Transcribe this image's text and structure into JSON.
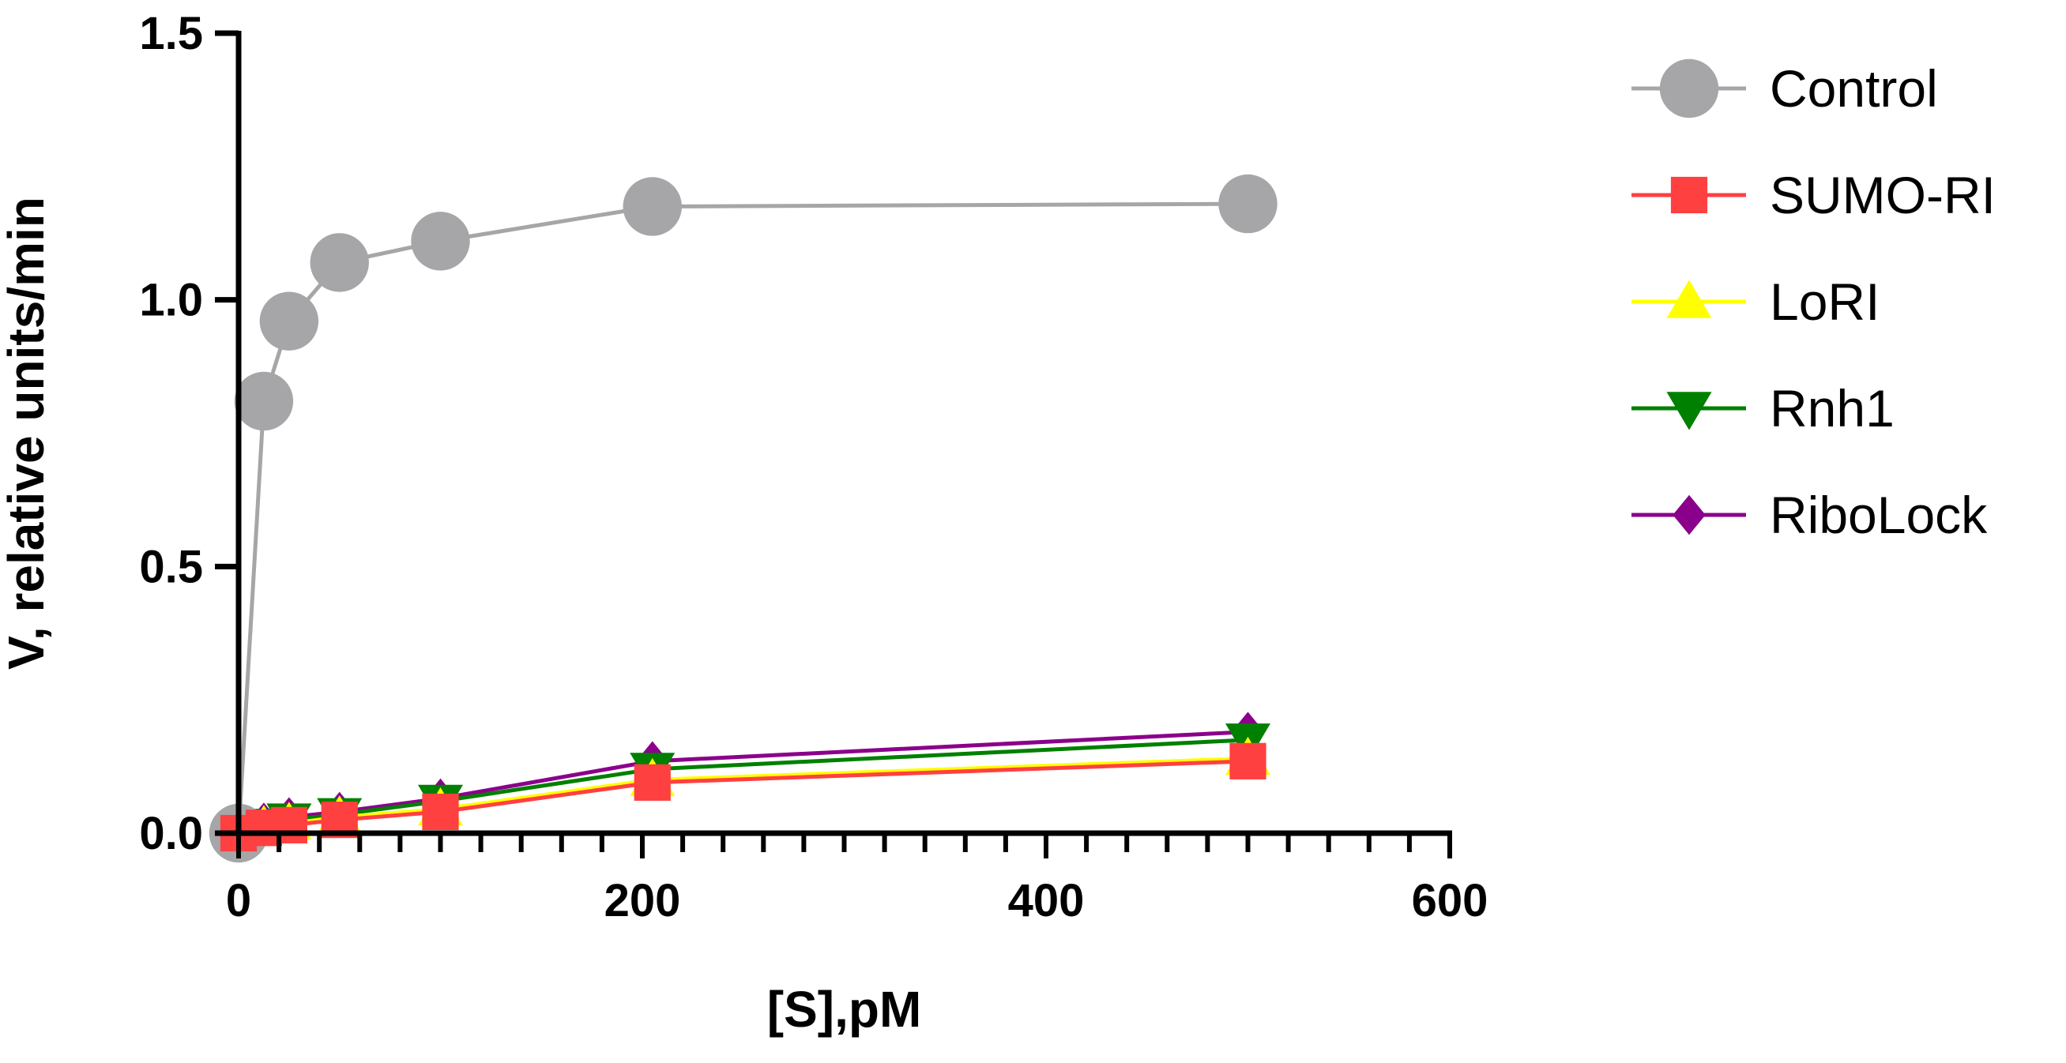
{
  "chart_data": {
    "type": "line",
    "title": "",
    "xlabel": "[S],pM",
    "ylabel": "V, relative units/min",
    "xlim": [
      0,
      600
    ],
    "ylim": [
      0,
      1.5
    ],
    "x_ticks": [
      "0",
      "200",
      "400",
      "600"
    ],
    "y_ticks": [
      "0.0",
      "0.5",
      "1.0",
      "1.5"
    ],
    "x_minor_step": 20,
    "grid": false,
    "legend_position": "right",
    "x": [
      0,
      12.5,
      25,
      50,
      100,
      205,
      500
    ],
    "series": [
      {
        "name": "Control",
        "color": "#a6a6a8",
        "marker": "circle",
        "values": [
          0,
          0.81,
          0.96,
          1.07,
          1.11,
          1.175,
          1.18
        ]
      },
      {
        "name": "SUMO-RI",
        "color": "#ff4040",
        "marker": "square",
        "values": [
          0,
          0.01,
          0.015,
          0.025,
          0.04,
          0.095,
          0.135
        ]
      },
      {
        "name": "LoRI",
        "color": "#ffff00",
        "marker": "triangle-up",
        "values": [
          0,
          0.012,
          0.018,
          0.03,
          0.045,
          0.1,
          0.14
        ]
      },
      {
        "name": "Rnh1",
        "color": "#008000",
        "marker": "triangle-down",
        "values": [
          0,
          0.015,
          0.025,
          0.035,
          0.06,
          0.12,
          0.175
        ]
      },
      {
        "name": "RiboLock",
        "color": "#8b008b",
        "marker": "diamond",
        "values": [
          0,
          0.02,
          0.03,
          0.04,
          0.065,
          0.135,
          0.19
        ]
      }
    ]
  }
}
